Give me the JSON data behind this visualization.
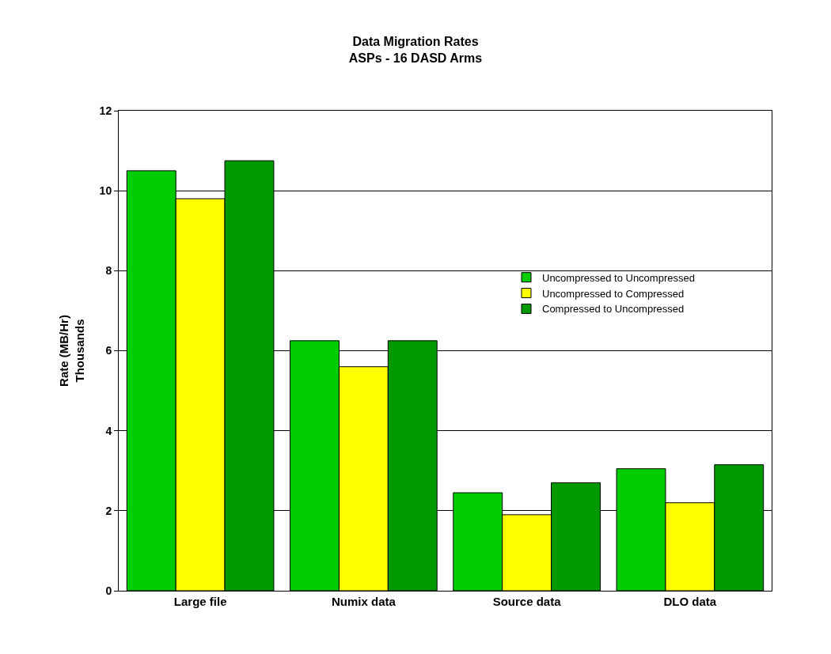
{
  "chart_data": {
    "type": "bar",
    "title": "Data Migration Rates",
    "subtitle": "ASPs - 16 DASD Arms",
    "ylabel": "Rate (MB/Hr)\nThousands",
    "categories": [
      "Large file",
      "Numix data",
      "Source data",
      "DLO data"
    ],
    "series": [
      {
        "name": "Uncompressed to Uncompressed",
        "color": "#00cc00",
        "values": [
          10.5,
          6.25,
          2.45,
          3.05
        ]
      },
      {
        "name": "Uncompressed to Compressed",
        "color": "#ffff00",
        "values": [
          9.8,
          5.6,
          1.9,
          2.2
        ]
      },
      {
        "name": "Compressed to Uncompressed",
        "color": "#009900",
        "values": [
          10.75,
          6.25,
          2.7,
          3.15
        ]
      }
    ],
    "ylim": [
      0,
      12
    ],
    "yticks": [
      0,
      2,
      4,
      6,
      8,
      10,
      12
    ],
    "grid": "y",
    "legend": "right"
  }
}
